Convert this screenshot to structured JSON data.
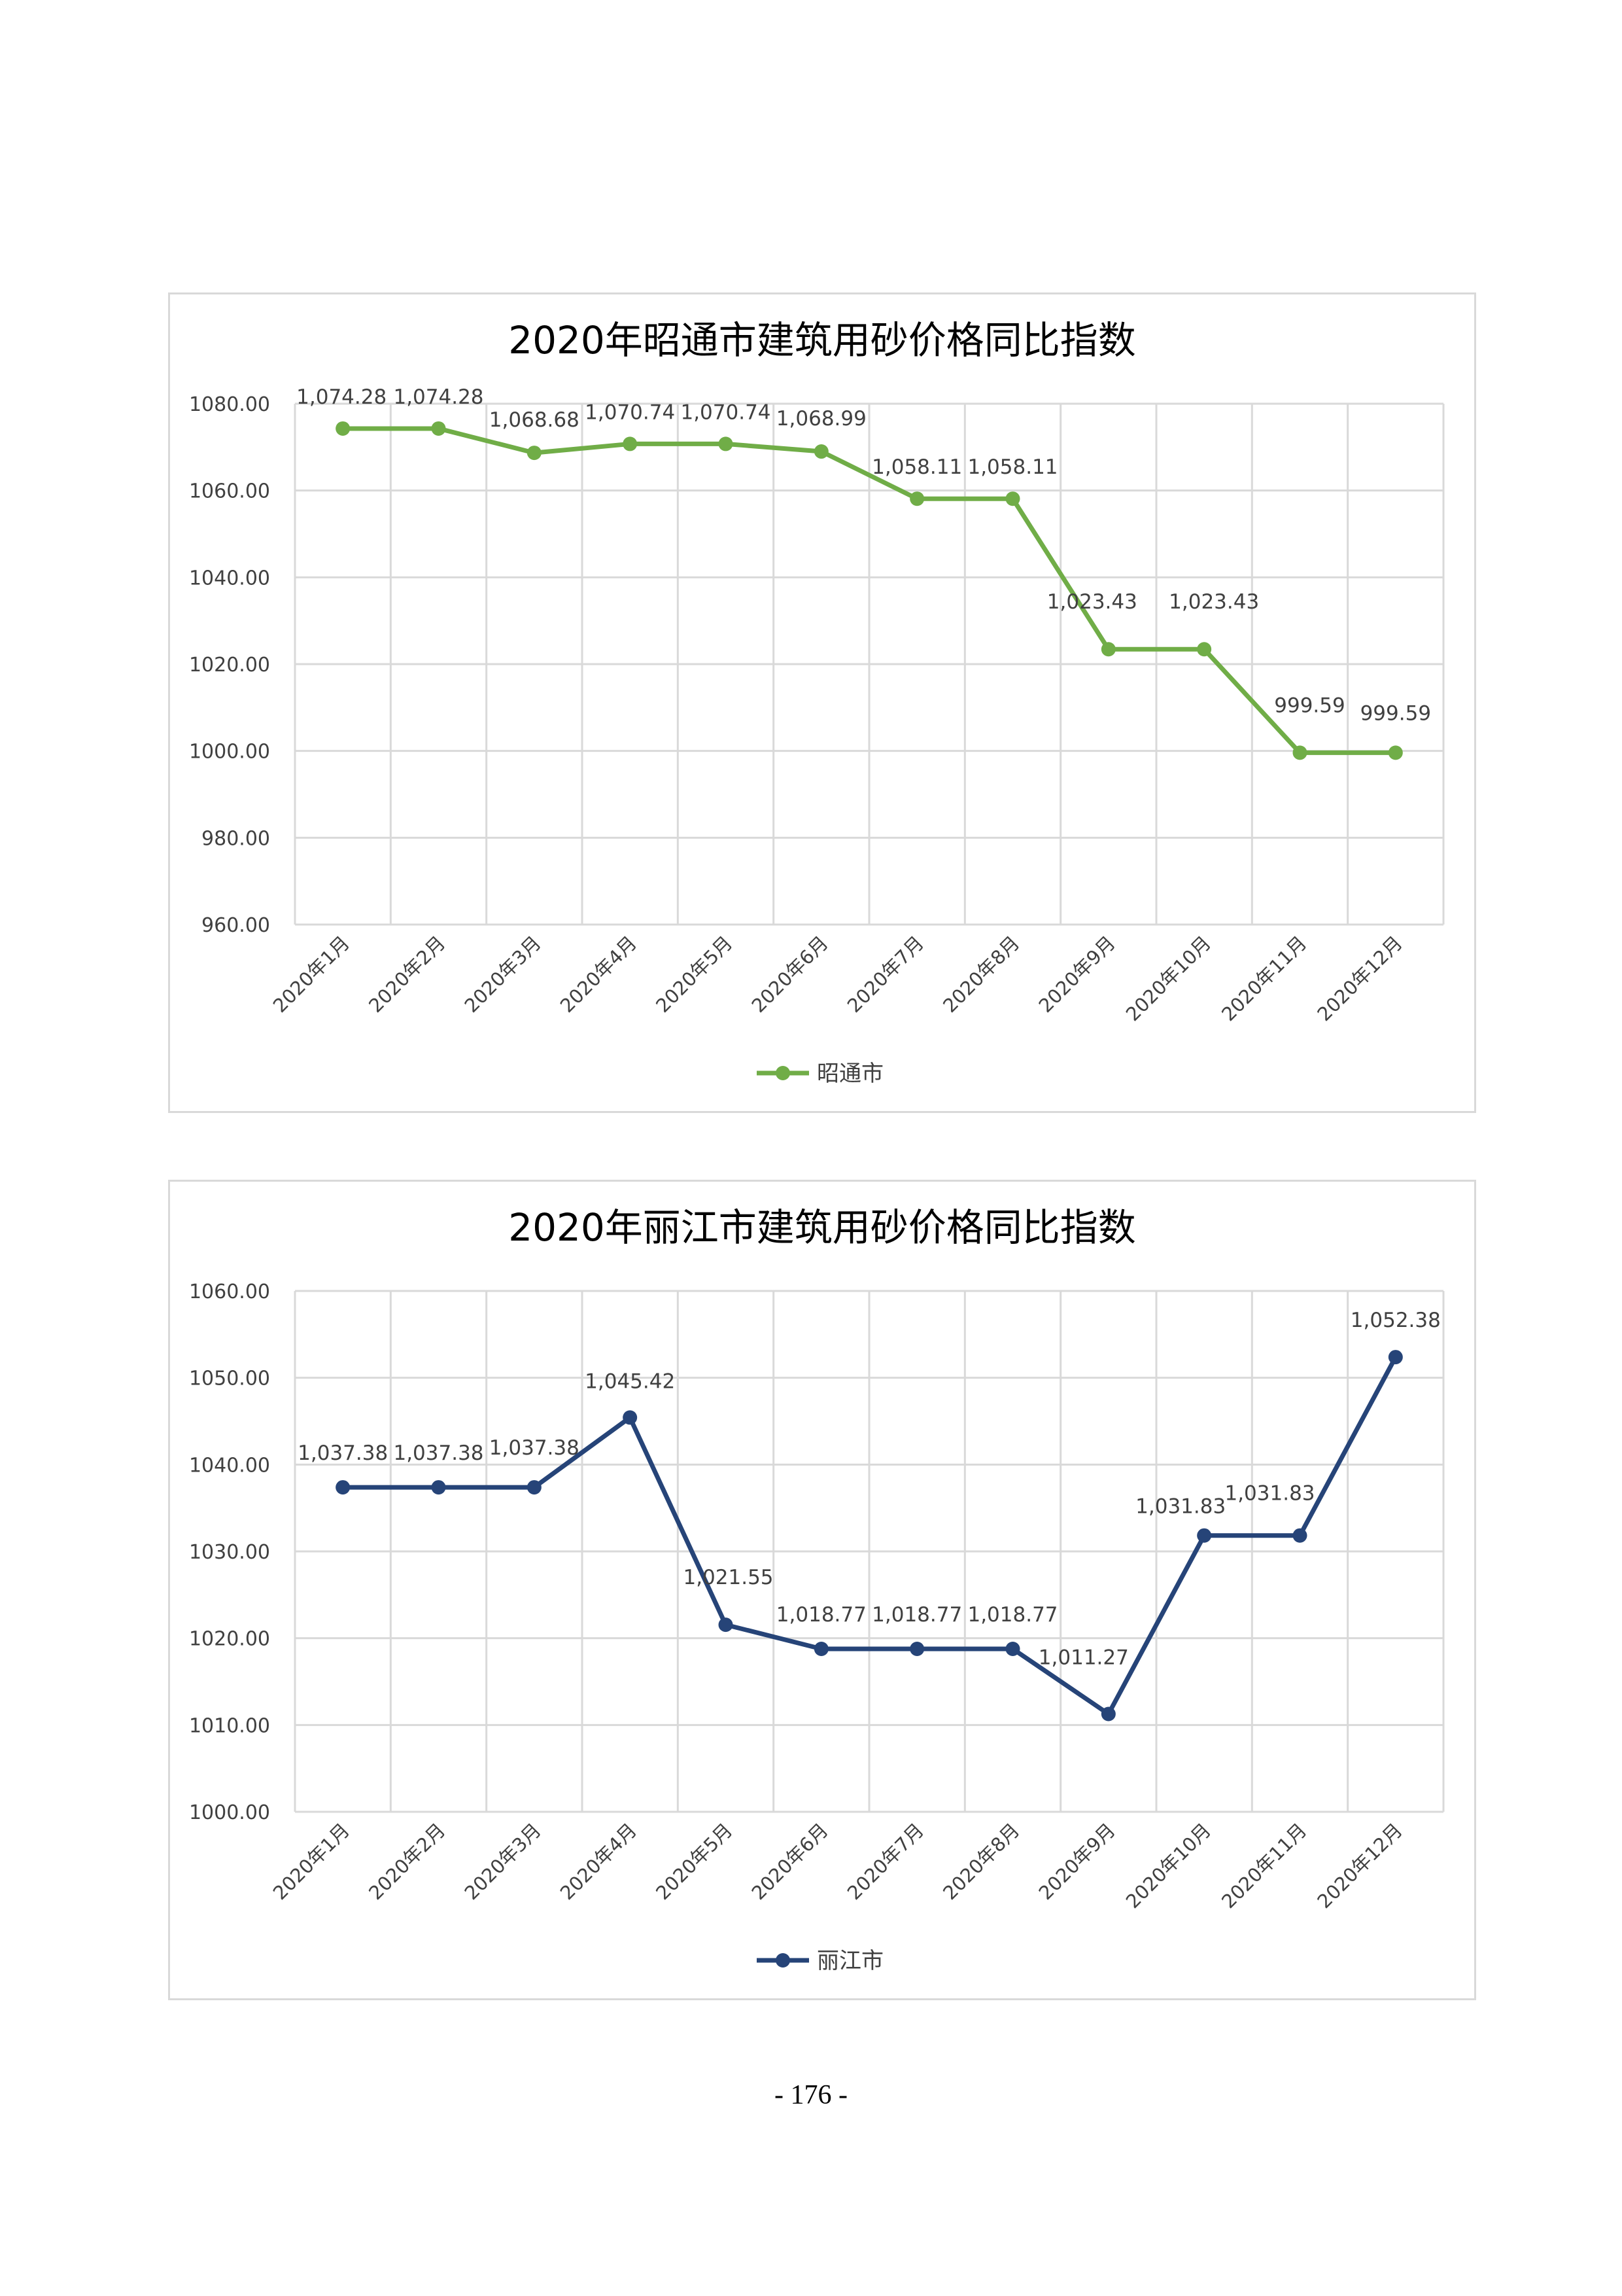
{
  "page": {
    "number": "- 176 -"
  },
  "chart_data": [
    {
      "type": "line",
      "title": "2020年昭通市建筑用砂价格同比指数",
      "categories": [
        "2020年1月",
        "2020年2月",
        "2020年3月",
        "2020年4月",
        "2020年5月",
        "2020年6月",
        "2020年7月",
        "2020年8月",
        "2020年9月",
        "2020年10月",
        "2020年11月",
        "2020年12月"
      ],
      "series": [
        {
          "name": "昭通市",
          "values": [
            1074.28,
            1074.28,
            1068.68,
            1070.74,
            1070.74,
            1068.99,
            1058.11,
            1058.11,
            1023.43,
            1023.43,
            999.59,
            999.59
          ]
        }
      ],
      "data_labels": [
        "1,074.28",
        "1,074.28",
        "1,068.68",
        "1,070.74",
        "1,070.74",
        "1,068.99",
        "1,058.11",
        "1,058.11",
        "1,023.43",
        "1,023.43",
        "999.59",
        "999.59"
      ],
      "ylim": [
        960,
        1080
      ],
      "yticks": [
        "1080.00",
        "1060.00",
        "1040.00",
        "1020.00",
        "1000.00",
        "980.00",
        "960.00"
      ],
      "grid": true,
      "legend": "bottom",
      "color": "#70ad47"
    },
    {
      "type": "line",
      "title": "2020年丽江市建筑用砂价格同比指数",
      "categories": [
        "2020年1月",
        "2020年2月",
        "2020年3月",
        "2020年4月",
        "2020年5月",
        "2020年6月",
        "2020年7月",
        "2020年8月",
        "2020年9月",
        "2020年10月",
        "2020年11月",
        "2020年12月"
      ],
      "series": [
        {
          "name": "丽江市",
          "values": [
            1037.38,
            1037.38,
            1037.38,
            1045.42,
            1021.55,
            1018.77,
            1018.77,
            1018.77,
            1011.27,
            1031.83,
            1031.83,
            1052.38
          ]
        }
      ],
      "data_labels": [
        "1,037.38",
        "1,037.38",
        "1,037.38",
        "1,045.42",
        "1,021.55",
        "1,018.77",
        "1,018.77",
        "1,018.77",
        "1,011.27",
        "1,031.83",
        "1,031.83",
        "1,052.38"
      ],
      "ylim": [
        1000,
        1060
      ],
      "yticks": [
        "1060.00",
        "1050.00",
        "1040.00",
        "1030.00",
        "1020.00",
        "1010.00",
        "1000.00"
      ],
      "grid": true,
      "legend": "bottom",
      "color": "#264478"
    }
  ]
}
